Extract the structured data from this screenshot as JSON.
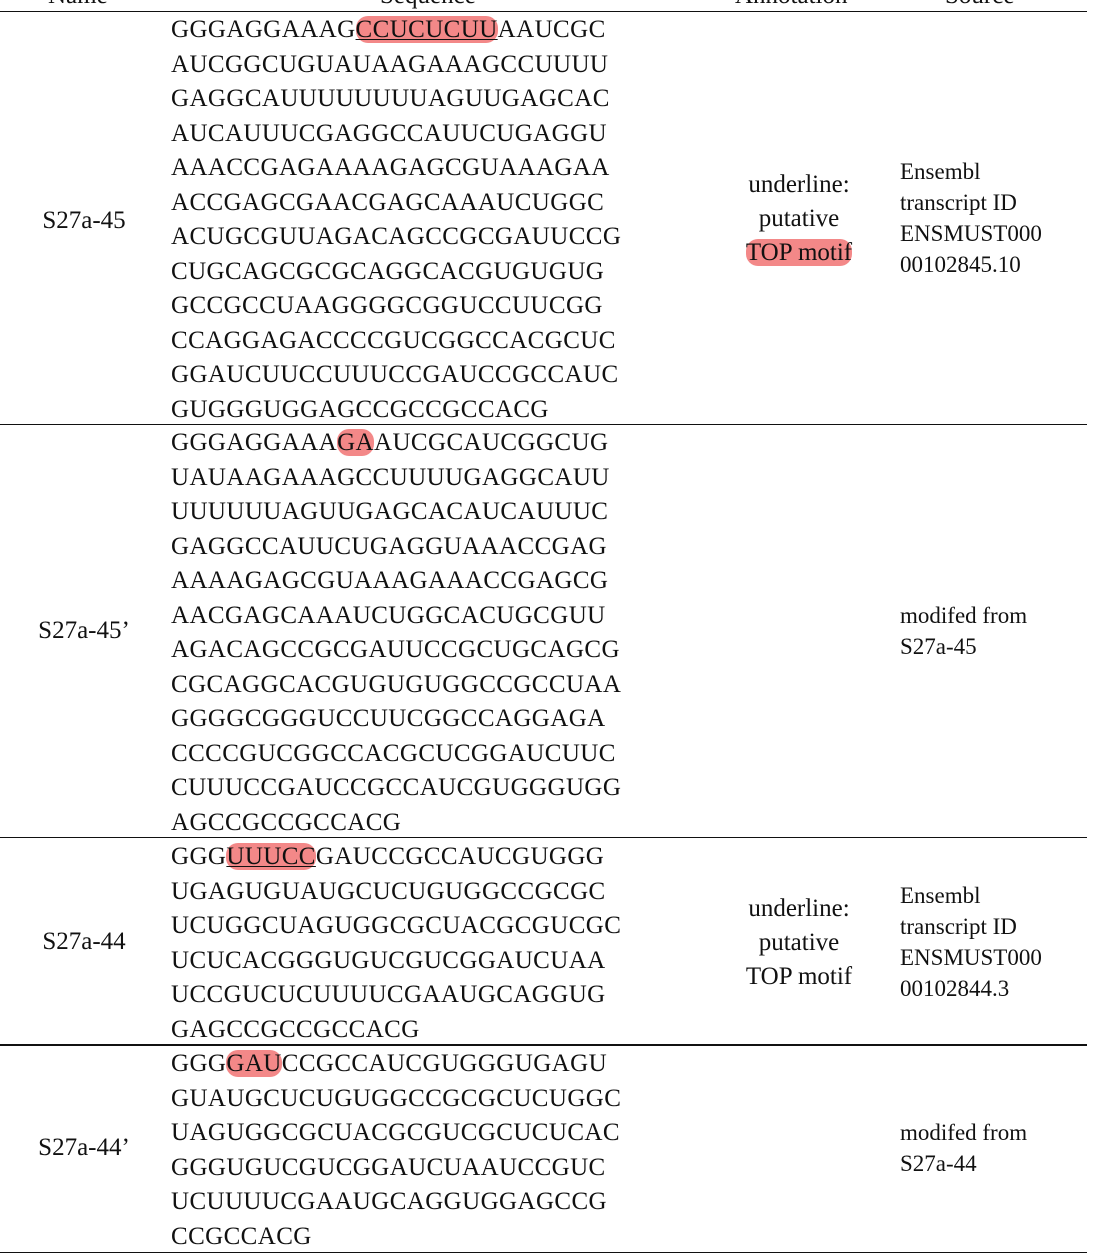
{
  "header": {
    "name": "Name",
    "sequence": "Sequence",
    "annotation": "Annotation",
    "source": "Source"
  },
  "rows": [
    {
      "name": "S27a-45",
      "sequence_lines": [
        {
          "pre": "GGGAGGAAAG",
          "mark": "CCUCUCUU",
          "post": "AAUCGC"
        },
        {
          "pre": "AUCGGCUGUAUAAGAAAGCCUUUU",
          "mark": "",
          "post": ""
        },
        {
          "pre": "GAGGCAUUUUUUUUAGUUGAGCAC",
          "mark": "",
          "post": ""
        },
        {
          "pre": "AUCAUUUCGAGGCCAUUCUGAGGU",
          "mark": "",
          "post": ""
        },
        {
          "pre": "AAACCGAGAAAAGAGCGUAAAGAA",
          "mark": "",
          "post": ""
        },
        {
          "pre": "ACCGAGCGAACGAGCAAAUCUGGC",
          "mark": "",
          "post": ""
        },
        {
          "pre": "ACUGCGUUAGACAGCCGCGAUUCCG",
          "mark": "",
          "post": ""
        },
        {
          "pre": "CUGCAGCGCGCAGGCACGUGUGUG",
          "mark": "",
          "post": ""
        },
        {
          "pre": "GCCGCCUAAGGGGCGGUCCUUCGG",
          "mark": "",
          "post": ""
        },
        {
          "pre": "CCAGGAGACCCCGUCGGCCACGCUC",
          "mark": "",
          "post": ""
        },
        {
          "pre": "GGAUCUUCCUUUCCGAUCCGCCAUC",
          "mark": "",
          "post": ""
        },
        {
          "pre": "GUGGGUGGAGCCGCCGCCACG",
          "mark": "",
          "post": ""
        }
      ],
      "annotation": [
        "underline:",
        "putative",
        "TOP motif"
      ],
      "source": [
        "Ensembl",
        "transcript ID",
        "ENSMUST000",
        "00102845.10"
      ]
    },
    {
      "name": "S27a-45’",
      "sequence_lines": [
        {
          "pre": "GGGAGGAAA",
          "mark": "GA",
          "post": "AUCGCAUCGGCUG"
        },
        {
          "pre": "UAUAAGAAAGCCUUUUGAGGCAUU",
          "mark": "",
          "post": ""
        },
        {
          "pre": "UUUUUUAGUUGAGCACAUCAUUUC",
          "mark": "",
          "post": ""
        },
        {
          "pre": "GAGGCCAUUCUGAGGUAAACCGAG",
          "mark": "",
          "post": ""
        },
        {
          "pre": "AAAAGAGCGUAAAGAAACCGAGCG",
          "mark": "",
          "post": ""
        },
        {
          "pre": "AACGAGCAAAUCUGGCACUGCGUU",
          "mark": "",
          "post": ""
        },
        {
          "pre": "AGACAGCCGCGAUUCCGCUGCAGCG",
          "mark": "",
          "post": ""
        },
        {
          "pre": "CGCAGGCACGUGUGUGGCCGCCUAA",
          "mark": "",
          "post": ""
        },
        {
          "pre": "GGGGCGGGUCCUUCGGCCAGGAGA",
          "mark": "",
          "post": ""
        },
        {
          "pre": "CCCCGUCGGCCACGCUCGGAUCUUC",
          "mark": "",
          "post": ""
        },
        {
          "pre": "CUUUCCGAUCCGCCAUCGUGGGUGG",
          "mark": "",
          "post": ""
        },
        {
          "pre": "AGCCGCCGCCACG",
          "mark": "",
          "post": ""
        }
      ],
      "annotation": [],
      "source": [
        "modifed from",
        "S27a-45"
      ]
    },
    {
      "name": "S27a-44",
      "sequence_lines": [
        {
          "pre": "GGG",
          "mark": "UUUCC",
          "post": "GAUCCGCCAUCGUGGG"
        },
        {
          "pre": "UGAGUGUAUGCUCUGUGGCCGCGC",
          "mark": "",
          "post": ""
        },
        {
          "pre": "UCUGGCUAGUGGCGCUACGCGUCGC",
          "mark": "",
          "post": ""
        },
        {
          "pre": "UCUCACGGGUGUCGUCGGAUCUAA",
          "mark": "",
          "post": ""
        },
        {
          "pre": "UCCGUCUCUUUUCGAAUGCAGGUG",
          "mark": "",
          "post": ""
        },
        {
          "pre": "GAGCCGCCGCCACG",
          "mark": "",
          "post": ""
        }
      ],
      "annotation": [
        "underline:",
        "putative",
        "TOP motif"
      ],
      "source": [
        "Ensembl",
        "transcript ID",
        "ENSMUST000",
        "00102844.3"
      ]
    },
    {
      "name": "S27a-44’",
      "sequence_lines": [
        {
          "pre": "GGG",
          "mark": "GAU",
          "post": "CCGCCAUCGUGGGUGAGU"
        },
        {
          "pre": "GUAUGCUCUGUGGCCGCGCUCUGGC",
          "mark": "",
          "post": ""
        },
        {
          "pre": "UAGUGGCGCUACGCGUCGCUCUCAC",
          "mark": "",
          "post": ""
        },
        {
          "pre": "GGGUGUCGUCGGAUCUAAUCCGUC",
          "mark": "",
          "post": ""
        },
        {
          "pre": "UCUUUUCGAAUGCAGGUGGAGCCG",
          "mark": "",
          "post": ""
        },
        {
          "pre": "CCGCCACG",
          "mark": "",
          "post": ""
        }
      ],
      "annotation": [],
      "source": [
        "modifed from",
        "S27a-44"
      ]
    }
  ],
  "colors": {
    "highlight": "#ef5a5a",
    "rule": "#111111",
    "text": "#111111"
  }
}
